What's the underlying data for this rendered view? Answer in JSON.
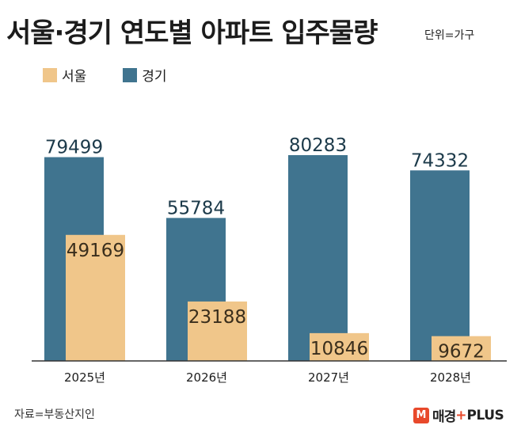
{
  "header": {
    "title": "서울·경기 연도별 아파트 입주물량",
    "unit": "단위=가구"
  },
  "footer": {
    "source": "자료=부동산지인",
    "brand_icon": "M",
    "brand_name": "매경",
    "brand_plus_mark": "+",
    "brand_plus": "PLUS"
  },
  "colors": {
    "seoul": "#f0c68a",
    "gyeonggi": "#40748f",
    "brand": "#e8492b"
  },
  "chart_data": {
    "type": "bar",
    "title": "서울·경기 연도별 아파트 입주물량",
    "categories": [
      "2025년",
      "2026년",
      "2027년",
      "2028년"
    ],
    "series": [
      {
        "name": "서울",
        "values": [
          49169,
          23188,
          10846,
          9672
        ]
      },
      {
        "name": "경기",
        "values": [
          79499,
          55784,
          80283,
          74332
        ]
      }
    ],
    "ylim": [
      0,
      82000
    ],
    "grid": false,
    "legend": "top-left"
  }
}
